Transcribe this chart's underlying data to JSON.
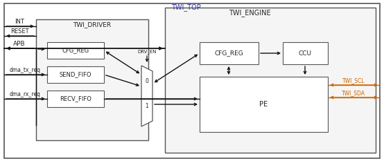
{
  "fig_width": 5.54,
  "fig_height": 2.33,
  "dpi": 100,
  "text_color": "#222222",
  "orange_color": "#cc6600",
  "arrow_color": "#111111",
  "blue_label_color": "#3333aa",
  "edge_color": "#555555",
  "block_face": "#ffffff",
  "region_face": "#f0f0f0",
  "outer_face": "#ffffff",
  "labels": {
    "twi_top": "TWI_TOP",
    "twi_engine": "TWI_ENGINE",
    "twi_driver": "TWI_DRIVER",
    "cfg_reg_d": "CFG_REG",
    "send_fifo": "SEND_FIFO",
    "recv_fifo": "RECV_FIFO",
    "cfg_reg_e": "CFG_REG",
    "ccu": "CCU",
    "pe": "PE",
    "int": "INT",
    "reset": "RESET",
    "apb": "APB",
    "dma_tx": "dma_tx_req",
    "dma_rx": "dma_rx_req",
    "twi_scl": "TWI_SCL",
    "twi_sda": "TWI_SDA",
    "drv_en": "DRV_EN",
    "mux0": "0",
    "mux1": "1"
  }
}
